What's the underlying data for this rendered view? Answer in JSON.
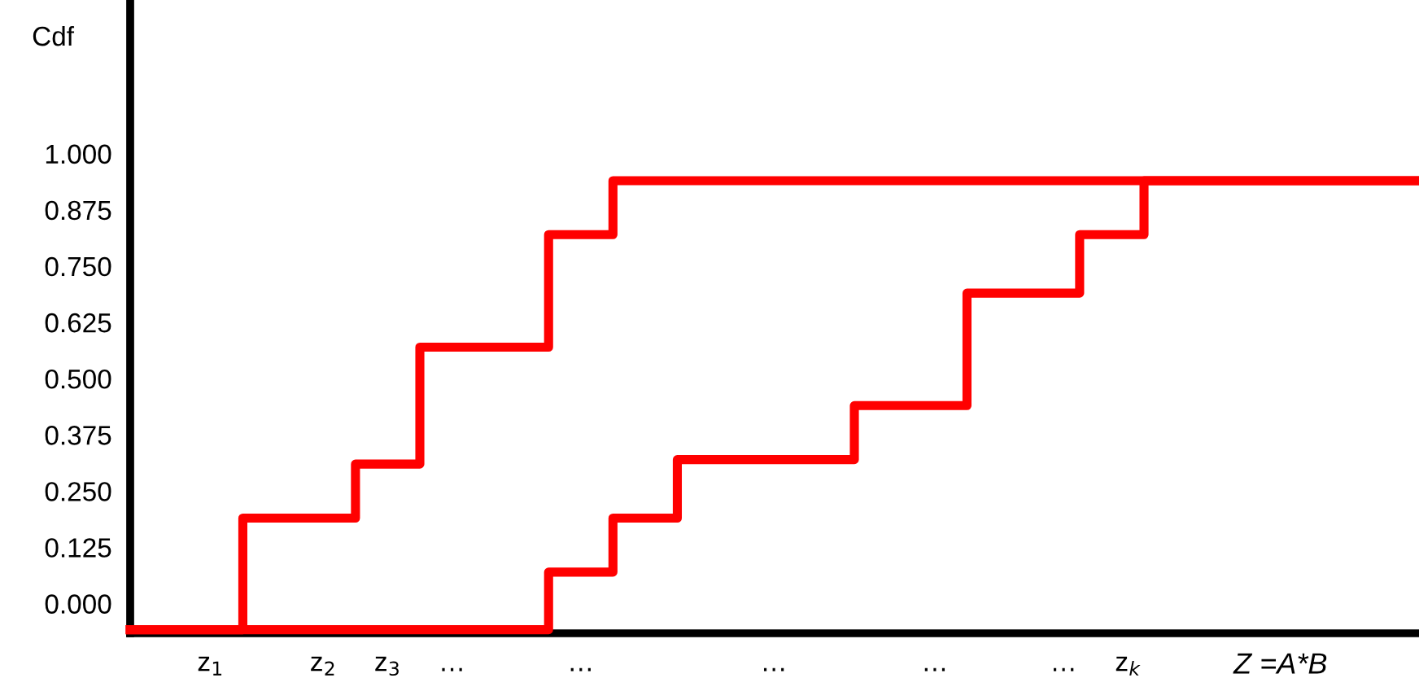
{
  "chart_data": {
    "type": "step",
    "ylabel": "Cdf",
    "xlabel": "Z =A*B",
    "ylim": [
      -0.066,
      1.34
    ],
    "categories": [
      null,
      null,
      null,
      null,
      null,
      "z$_{1}$",
      null,
      null,
      null,
      null,
      null,
      null,
      "z$_{2}$",
      null,
      null,
      null,
      "z$_{3}$",
      null,
      null,
      null,
      "…",
      null,
      null,
      null,
      null,
      null,
      null,
      null,
      "…",
      null,
      null,
      null,
      null,
      null,
      null,
      null,
      null,
      null,
      null,
      null,
      "…",
      null,
      null,
      null,
      null,
      null,
      null,
      null,
      null,
      null,
      "…",
      null,
      null,
      null,
      null,
      null,
      null,
      null,
      "…",
      null,
      null,
      null,
      "z$_{k}$",
      null,
      null,
      null,
      null,
      null,
      null,
      null,
      null,
      null,
      null,
      null,
      null,
      null,
      null,
      null,
      null,
      null,
      null
    ],
    "yticks": [
      {
        "value": 0,
        "label": "0.000"
      },
      {
        "value": 0.125,
        "label": "0.125"
      },
      {
        "value": 0.25,
        "label": "0.250"
      },
      {
        "value": 0.375,
        "label": "0.375"
      },
      {
        "value": 0.5,
        "label": "0.500"
      },
      {
        "value": 0.625,
        "label": "0.625"
      },
      {
        "value": 0.75,
        "label": "0.750"
      },
      {
        "value": 0.875,
        "label": "0.875"
      },
      {
        "value": 1,
        "label": "1.000"
      }
    ],
    "grid": false,
    "legend": false,
    "line_style": "solid",
    "marker": "none",
    "series": [
      {
        "color": "#ff0000",
        "values": [
          -0.058,
          -0.058,
          -0.058,
          -0.058,
          -0.058,
          -0.058,
          -0.058,
          -0.058,
          -0.058,
          -0.058,
          -0.058,
          -0.058,
          -0.058,
          -0.058,
          -0.058,
          -0.058,
          -0.058,
          -0.058,
          -0.058,
          -0.058,
          -0.058,
          -0.058,
          -0.058,
          -0.058,
          -0.058,
          -0.058,
          0.07,
          0.07,
          0.07,
          0.07,
          0.19,
          0.19,
          0.19,
          0.19,
          0.32,
          0.32,
          0.32,
          0.32,
          0.32,
          0.32,
          0.32,
          0.32,
          0.32,
          0.32,
          0.32,
          0.44,
          0.44,
          0.44,
          0.44,
          0.44,
          0.44,
          0.44,
          0.69,
          0.69,
          0.69,
          0.69,
          0.69,
          0.69,
          0.69,
          0.82,
          0.82,
          0.82,
          0.82,
          0.94,
          0.94,
          0.94,
          0.94,
          0.94,
          0.94,
          0.94,
          0.94,
          0.94,
          0.94,
          0.94,
          0.94,
          0.94,
          0.94,
          0.94,
          0.94,
          0.94,
          0.94
        ]
      },
      {
        "color": "#ff0000",
        "values": [
          -0.058,
          -0.058,
          -0.058,
          -0.058,
          -0.058,
          -0.058,
          -0.058,
          0.19,
          0.19,
          0.19,
          0.19,
          0.19,
          0.19,
          0.19,
          0.31,
          0.31,
          0.31,
          0.31,
          0.57,
          0.57,
          0.57,
          0.57,
          0.57,
          0.57,
          0.57,
          0.57,
          0.82,
          0.82,
          0.82,
          0.82,
          0.94,
          0.94,
          0.94,
          0.94,
          0.94,
          0.94,
          0.94,
          0.94,
          0.94,
          0.94,
          0.94,
          0.94,
          0.94,
          0.94,
          0.94,
          0.94,
          0.94,
          0.94,
          0.94,
          0.94,
          0.94,
          0.94,
          0.94,
          0.94,
          0.94,
          0.94,
          0.94,
          0.94,
          0.94,
          0.94,
          0.94,
          0.94,
          0.94,
          0.94,
          0.94,
          0.94,
          0.94,
          0.94,
          0.94,
          0.94,
          0.94,
          0.94,
          0.94,
          0.94,
          0.94,
          0.94,
          0.94,
          0.94,
          0.94,
          0.94,
          0.94
        ]
      }
    ]
  }
}
